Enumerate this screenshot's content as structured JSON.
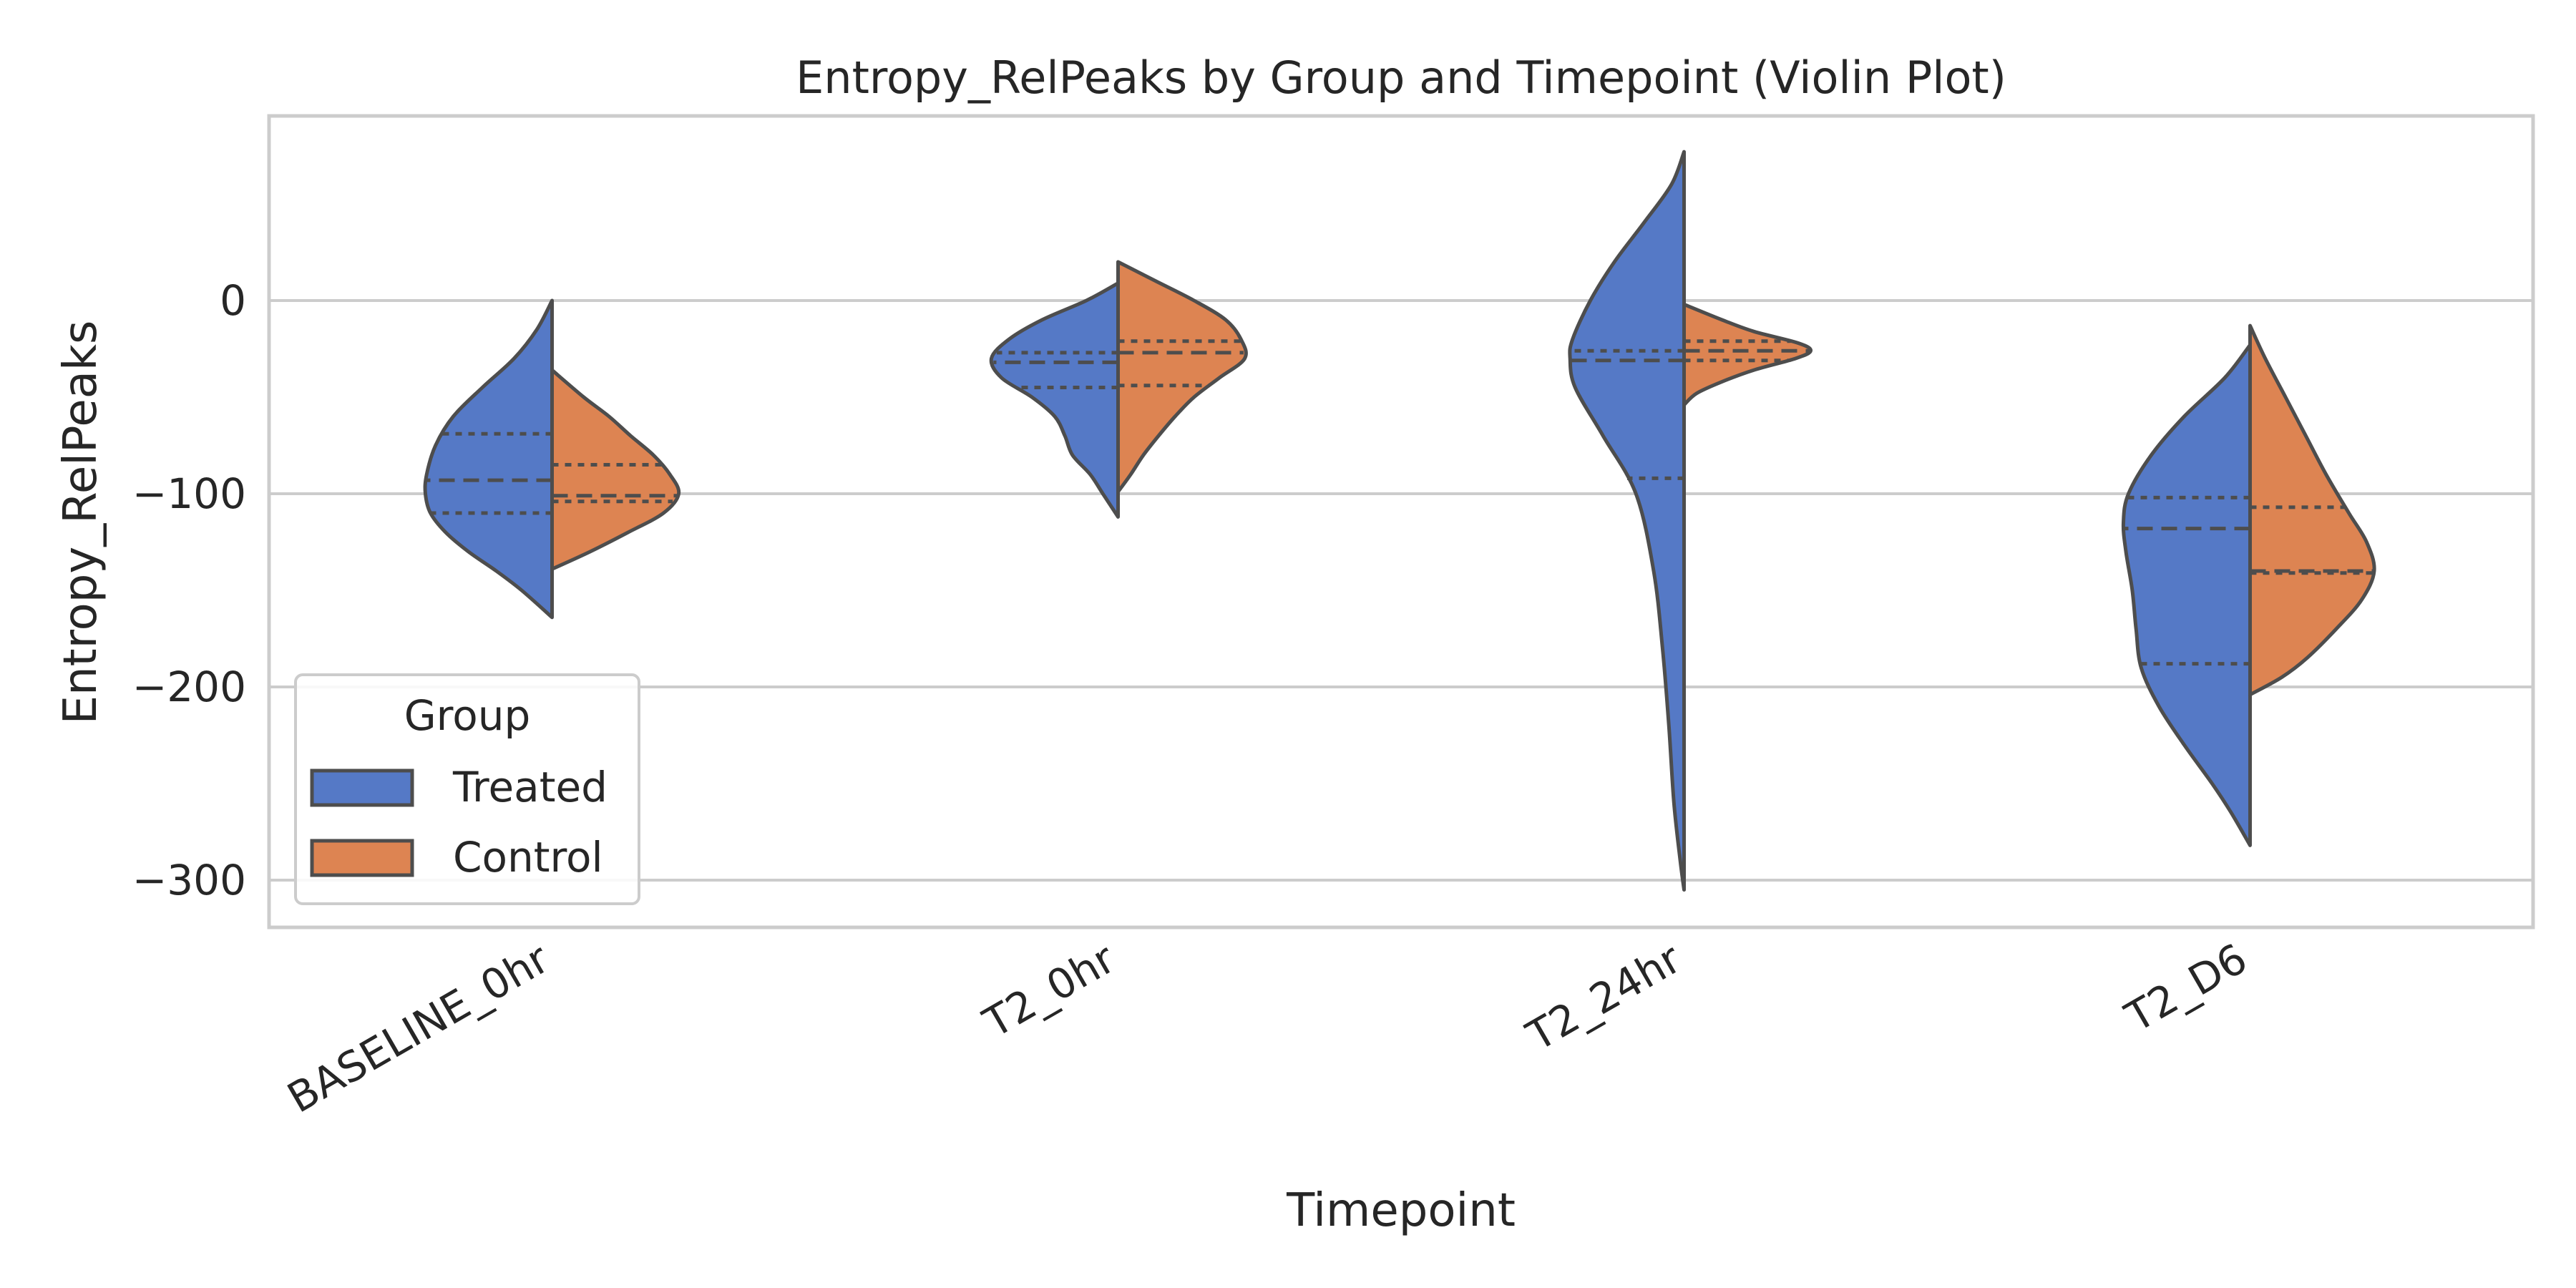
{
  "chart_data": {
    "type": "violin",
    "title": "Entropy_RelPeaks by Group and Timepoint (Violin Plot)",
    "xlabel": "Timepoint",
    "ylabel": "Entropy_RelPeaks",
    "categories": [
      "BASELINE_0hr",
      "T2_0hr",
      "T2_24hr",
      "T2_D6"
    ],
    "ylim": [
      -325,
      97
    ],
    "yticks": [
      0,
      -100,
      -200,
      -300
    ],
    "ytick_labels": [
      "0",
      "−100",
      "−200",
      "−300"
    ],
    "grid": "horizontal",
    "legend": {
      "title": "Group",
      "placement": "lower-left"
    },
    "series": [
      {
        "name": "Treated",
        "color": "#5579c6",
        "side": "left",
        "violins": [
          {
            "category": "BASELINE_0hr",
            "min": -164,
            "max": 0,
            "q1": -110,
            "median": -93,
            "q3": -69,
            "profile": [
              [
                0,
                0
              ],
              [
                -15,
                0.12
              ],
              [
                -30,
                0.3
              ],
              [
                -45,
                0.55
              ],
              [
                -60,
                0.78
              ],
              [
                -75,
                0.92
              ],
              [
                -90,
                0.99
              ],
              [
                -100,
                1.0
              ],
              [
                -110,
                0.96
              ],
              [
                -120,
                0.84
              ],
              [
                -130,
                0.66
              ],
              [
                -140,
                0.44
              ],
              [
                -150,
                0.24
              ],
              [
                -164,
                0
              ]
            ]
          },
          {
            "category": "T2_0hr",
            "min": -112,
            "max": 9,
            "q1": -45,
            "median": -32,
            "q3": -27,
            "profile": [
              [
                9,
                0
              ],
              [
                0,
                0.25
              ],
              [
                -10,
                0.6
              ],
              [
                -20,
                0.86
              ],
              [
                -30,
                1.0
              ],
              [
                -40,
                0.92
              ],
              [
                -50,
                0.68
              ],
              [
                -60,
                0.5
              ],
              [
                -70,
                0.42
              ],
              [
                -80,
                0.36
              ],
              [
                -90,
                0.22
              ],
              [
                -100,
                0.12
              ],
              [
                -112,
                0
              ]
            ]
          },
          {
            "category": "T2_24hr",
            "min": -305,
            "max": 77,
            "q1": -92,
            "median": -31,
            "q3": -26,
            "profile": [
              [
                77,
                0
              ],
              [
                60,
                0.1
              ],
              [
                40,
                0.32
              ],
              [
                20,
                0.55
              ],
              [
                0,
                0.74
              ],
              [
                -20,
                0.88
              ],
              [
                -30,
                0.9
              ],
              [
                -45,
                0.86
              ],
              [
                -70,
                0.64
              ],
              [
                -100,
                0.38
              ],
              [
                -140,
                0.24
              ],
              [
                -180,
                0.17
              ],
              [
                -220,
                0.12
              ],
              [
                -260,
                0.08
              ],
              [
                -290,
                0.03
              ],
              [
                -305,
                0
              ]
            ]
          },
          {
            "category": "T2_D6",
            "min": -282,
            "max": -23,
            "q1": -188,
            "median": -118,
            "q3": -102,
            "profile": [
              [
                -23,
                0
              ],
              [
                -40,
                0.2
              ],
              [
                -60,
                0.52
              ],
              [
                -80,
                0.78
              ],
              [
                -100,
                0.96
              ],
              [
                -115,
                1.0
              ],
              [
                -130,
                0.98
              ],
              [
                -150,
                0.93
              ],
              [
                -170,
                0.9
              ],
              [
                -190,
                0.86
              ],
              [
                -210,
                0.72
              ],
              [
                -230,
                0.52
              ],
              [
                -250,
                0.3
              ],
              [
                -265,
                0.15
              ],
              [
                -282,
                0
              ]
            ]
          }
        ]
      },
      {
        "name": "Control",
        "color": "#dd8452",
        "side": "right",
        "violins": [
          {
            "category": "BASELINE_0hr",
            "min": -139,
            "max": -36,
            "q1": -104,
            "median": -101,
            "q3": -85,
            "profile": [
              [
                -36,
                0
              ],
              [
                -50,
                0.25
              ],
              [
                -60,
                0.45
              ],
              [
                -70,
                0.62
              ],
              [
                -80,
                0.8
              ],
              [
                -90,
                0.93
              ],
              [
                -100,
                1.0
              ],
              [
                -110,
                0.88
              ],
              [
                -120,
                0.6
              ],
              [
                -130,
                0.3
              ],
              [
                -139,
                0
              ]
            ]
          },
          {
            "category": "T2_0hr",
            "min": -99,
            "max": 20,
            "q1": -44,
            "median": -27,
            "q3": -21,
            "profile": [
              [
                20,
                0
              ],
              [
                10,
                0.3
              ],
              [
                0,
                0.6
              ],
              [
                -10,
                0.85
              ],
              [
                -20,
                0.97
              ],
              [
                -30,
                1.0
              ],
              [
                -40,
                0.8
              ],
              [
                -50,
                0.6
              ],
              [
                -60,
                0.45
              ],
              [
                -70,
                0.32
              ],
              [
                -80,
                0.2
              ],
              [
                -90,
                0.1
              ],
              [
                -99,
                0
              ]
            ]
          },
          {
            "category": "T2_24hr",
            "min": -54,
            "max": -2,
            "q1": -31,
            "median": -26,
            "q3": -21,
            "profile": [
              [
                -2,
                0
              ],
              [
                -10,
                0.3
              ],
              [
                -16,
                0.55
              ],
              [
                -22,
                0.9
              ],
              [
                -26,
                1.0
              ],
              [
                -30,
                0.88
              ],
              [
                -36,
                0.55
              ],
              [
                -42,
                0.3
              ],
              [
                -48,
                0.1
              ],
              [
                -54,
                0
              ]
            ]
          },
          {
            "category": "T2_D6",
            "min": -204,
            "max": -13,
            "q1": -141,
            "median": -140,
            "q3": -107,
            "profile": [
              [
                -13,
                0
              ],
              [
                -30,
                0.12
              ],
              [
                -50,
                0.28
              ],
              [
                -70,
                0.44
              ],
              [
                -90,
                0.6
              ],
              [
                -110,
                0.78
              ],
              [
                -125,
                0.92
              ],
              [
                -140,
                0.98
              ],
              [
                -155,
                0.88
              ],
              [
                -170,
                0.68
              ],
              [
                -185,
                0.45
              ],
              [
                -195,
                0.25
              ],
              [
                -204,
                0
              ]
            ]
          }
        ]
      }
    ]
  }
}
